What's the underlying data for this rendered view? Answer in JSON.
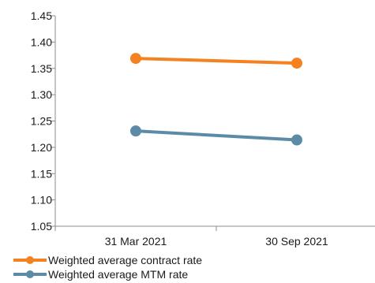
{
  "chart_data": {
    "type": "line",
    "categories": [
      "31 Mar 2021",
      "30 Sep 2021"
    ],
    "series": [
      {
        "name": "Weighted average contract rate",
        "values": [
          1.369,
          1.36
        ],
        "color": "#f58220"
      },
      {
        "name": "Weighted average MTM rate",
        "values": [
          1.231,
          1.214
        ],
        "color": "#5b8ba6"
      }
    ],
    "ylim": [
      1.05,
      1.45
    ],
    "yticks": [
      "1.05",
      "1.10",
      "1.15",
      "1.20",
      "1.25",
      "1.30",
      "1.35",
      "1.40",
      "1.45"
    ],
    "title": "",
    "xlabel": "",
    "ylabel": "",
    "grid": false,
    "legend_position": "bottom-left",
    "axis_color": "#8c8c8c"
  }
}
